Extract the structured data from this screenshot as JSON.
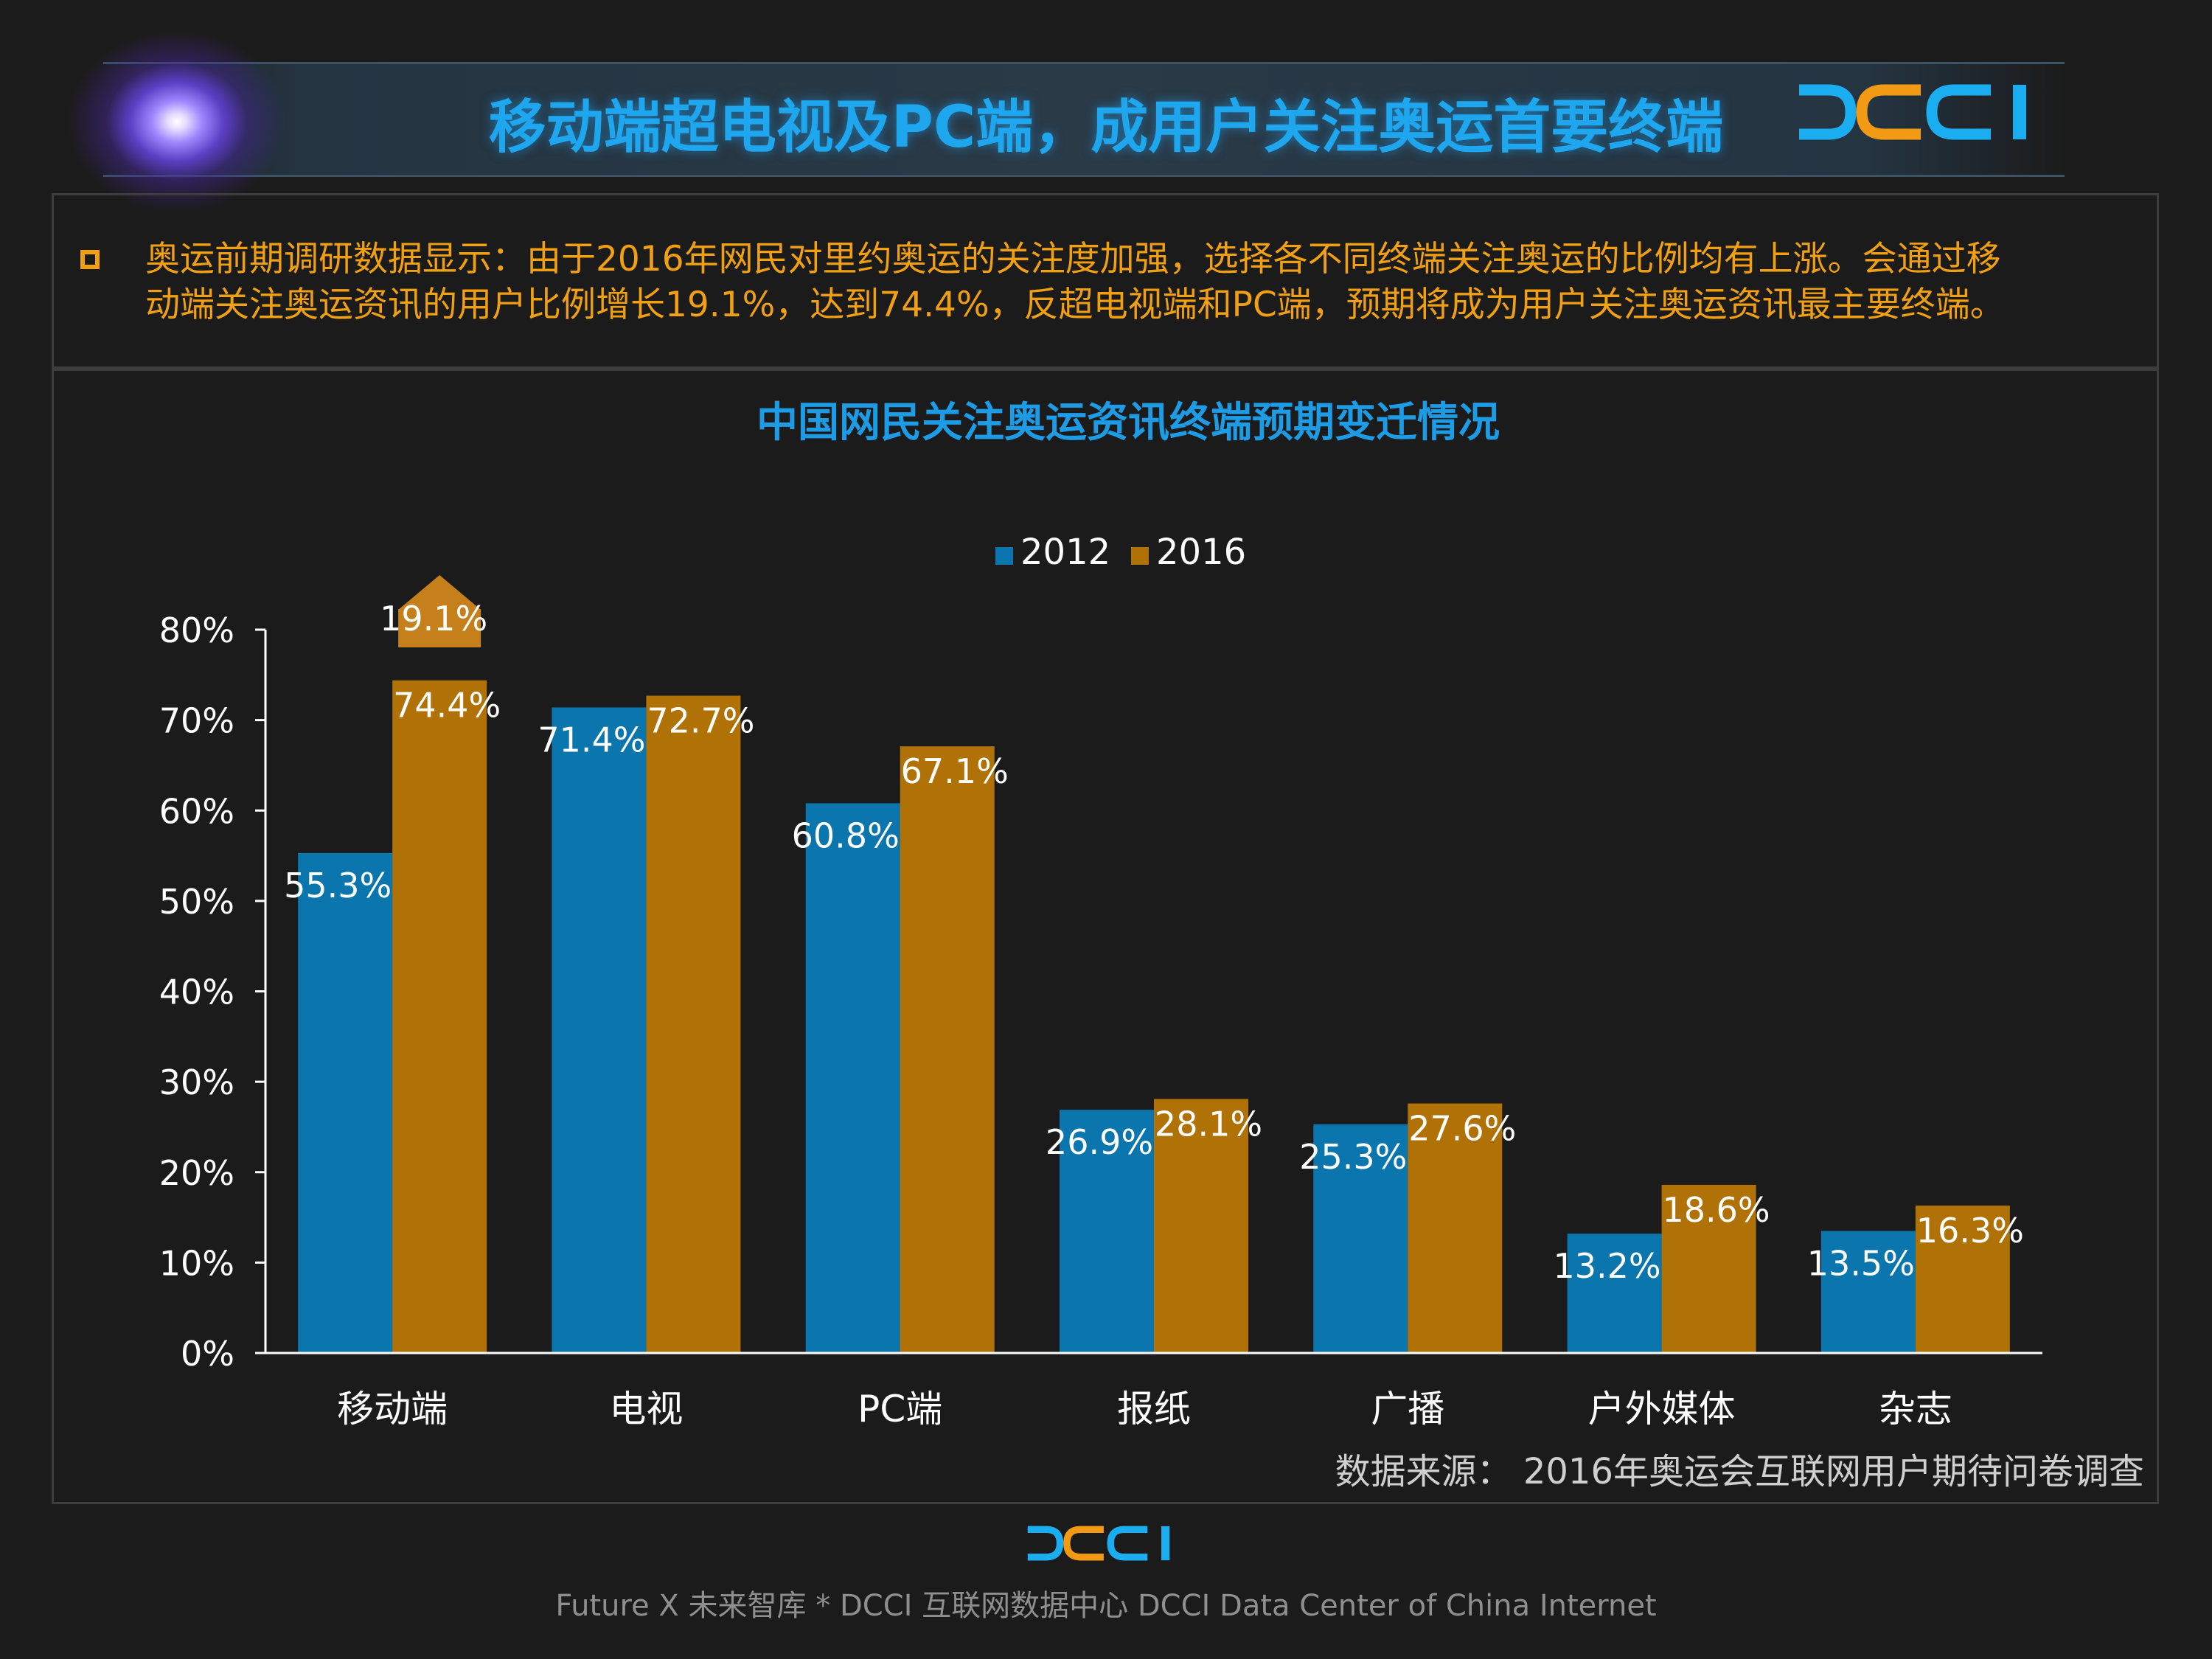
{
  "header": {
    "title": "移动端超电视及PC端，成用户关注奥运首要终端",
    "logo_text": "DCCI"
  },
  "summary": {
    "text": "奥运前期调研数据显示：由于2016年网民对里约奥运的关注度加强，选择各不同终端关注奥运的比例均有上涨。会通过移\n动端关注奥运资讯的用户比例增长19.1%，达到74.4%，反超电视端和PC端，预期将成为用户关注奥运资讯最主要终端。"
  },
  "colors": {
    "title_blue": "#1ea6ee",
    "summary_orange": "#f0a012",
    "series_2012": "#0a76ad",
    "series_2016": "#b07207",
    "background": "#1b1b1b"
  },
  "chart_data": {
    "type": "bar",
    "title": "中国网民关注奥运资讯终端预期变迁情况",
    "categories": [
      "移动端",
      "电视",
      "PC端",
      "报纸",
      "广播",
      "户外媒体",
      "杂志"
    ],
    "series": [
      {
        "name": "2012",
        "values": [
          55.3,
          71.4,
          60.8,
          26.9,
          25.3,
          13.2,
          13.5
        ],
        "color": "#0a76ad"
      },
      {
        "name": "2016",
        "values": [
          74.4,
          72.7,
          67.1,
          28.1,
          27.6,
          18.6,
          16.3
        ],
        "color": "#b07207"
      }
    ],
    "ylim": [
      0,
      80
    ],
    "yticks": [
      "0%",
      "10%",
      "20%",
      "30%",
      "40%",
      "50%",
      "60%",
      "70%",
      "80%"
    ],
    "legend_position": "top-center",
    "grid": false,
    "annotation": {
      "text": "19.1%",
      "category": "移动端"
    }
  },
  "source": {
    "text": "数据来源： 2016年奥运会互联网用户期待问卷调查"
  },
  "footer": {
    "logo_text": "DCCI",
    "text": "Future X 未来智库 * DCCI 互联网数据中心 DCCI Data Center of China Internet"
  }
}
